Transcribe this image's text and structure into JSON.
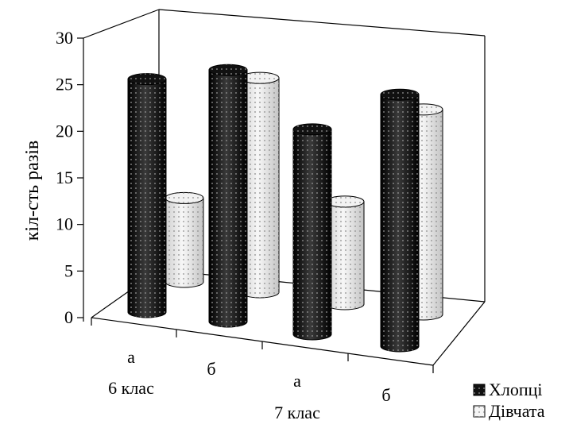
{
  "chart_data": {
    "type": "bar",
    "style": "3d-cylinder",
    "ylabel": "кіл-сть разів",
    "xlabel": "",
    "title": "",
    "ylim": [
      0,
      30
    ],
    "yticks": [
      0,
      5,
      10,
      15,
      20,
      25,
      30
    ],
    "categories": [
      {
        "sub": "а",
        "group": "6 клас"
      },
      {
        "sub": "б",
        "group": ""
      },
      {
        "sub": "а",
        "group": "7 клас"
      },
      {
        "sub": "б",
        "group": ""
      }
    ],
    "series": [
      {
        "name": "Хлопці",
        "color": "#1a1a1a",
        "values": [
          25,
          27,
          22,
          27
        ]
      },
      {
        "name": "Дівчата",
        "color": "#e8e8e8",
        "values": [
          9,
          23,
          11,
          22
        ]
      }
    ],
    "grid": false,
    "legend_position": "bottom-right"
  }
}
